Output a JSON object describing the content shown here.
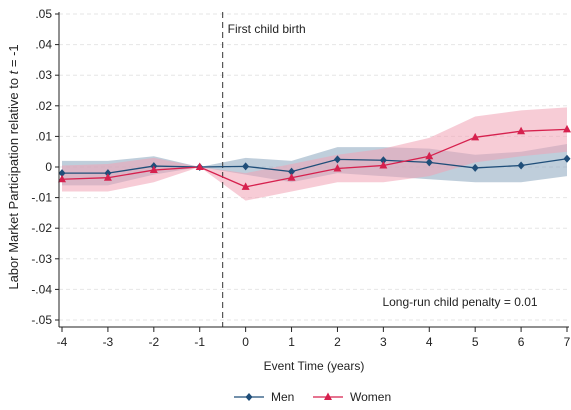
{
  "chart_data": {
    "type": "line",
    "ylabel_pre": "Labor Market Participation relative to ",
    "ylabel_var": "t",
    "ylabel_post": " = -1",
    "xlabel": "Event Time (years)",
    "x": [
      -4,
      -3,
      -2,
      -1,
      0,
      1,
      2,
      3,
      4,
      5,
      6,
      7
    ],
    "xlim": [
      -4,
      7
    ],
    "ylim": [
      -0.052,
      0.052
    ],
    "yticks": [
      0.05,
      0.04,
      0.03,
      0.02,
      0.01,
      0,
      -0.01,
      -0.02,
      -0.03,
      -0.04,
      -0.05
    ],
    "ytick_labels": [
      ".05",
      ".04",
      ".03",
      ".02",
      ".01",
      "0",
      "-.01",
      "-.02",
      "-.03",
      "-.04",
      "-.05"
    ],
    "xtick_labels": [
      "-4",
      "-3",
      "-2",
      "-1",
      "0",
      "1",
      "2",
      "3",
      "4",
      "5",
      "6",
      "7"
    ],
    "series": [
      {
        "name": "Men",
        "color": "#1f4e79",
        "band_color": "#8aa5bd",
        "marker": "diamond",
        "values": [
          -0.002,
          -0.002,
          0.0003,
          0,
          0.0002,
          -0.0015,
          0.0025,
          0.0022,
          0.0015,
          -0.0003,
          0.0005,
          0.0027
        ],
        "ci_low": [
          -0.006,
          -0.006,
          -0.0025,
          0,
          -0.0025,
          -0.005,
          -0.002,
          -0.003,
          -0.004,
          -0.005,
          -0.005,
          -0.003
        ],
        "ci_high": [
          0.002,
          0.002,
          0.0035,
          0,
          0.003,
          0.002,
          0.0065,
          0.0065,
          0.006,
          0.004,
          0.005,
          0.0075
        ]
      },
      {
        "name": "Women",
        "color": "#d6214e",
        "band_color": "#f0a3b5",
        "marker": "triangle",
        "values": [
          -0.004,
          -0.0035,
          -0.001,
          0,
          -0.0065,
          -0.0035,
          -0.0005,
          0.0005,
          0.0035,
          0.0097,
          0.0117,
          0.0123
        ],
        "ci_low": [
          -0.008,
          -0.008,
          -0.005,
          0,
          -0.011,
          -0.008,
          -0.005,
          -0.005,
          -0.003,
          0.0015,
          0.0035,
          0.005
        ],
        "ci_high": [
          0.0005,
          0.001,
          0.003,
          0,
          -0.002,
          0.001,
          0.004,
          0.006,
          0.0095,
          0.0165,
          0.0185,
          0.0195
        ]
      }
    ],
    "event_line": {
      "x": -0.5,
      "label": "First child birth"
    },
    "annotation": "Long-run child penalty = 0.01",
    "grid": true,
    "legend_position": "bottom"
  }
}
